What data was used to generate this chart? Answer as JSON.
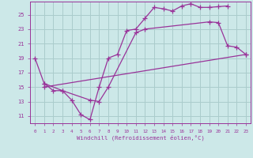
{
  "background_color": "#cce8e8",
  "grid_color": "#aacccc",
  "line_color": "#993399",
  "marker": "+",
  "markersize": 4,
  "linewidth": 0.9,
  "xlabel": "Windchill (Refroidissement éolien,°C)",
  "xlim": [
    -0.5,
    23.5
  ],
  "ylim": [
    10.0,
    26.8
  ],
  "yticks": [
    11,
    13,
    15,
    17,
    19,
    21,
    23,
    25
  ],
  "xticks": [
    0,
    1,
    2,
    3,
    4,
    5,
    6,
    7,
    8,
    9,
    10,
    11,
    12,
    13,
    14,
    15,
    16,
    17,
    18,
    19,
    20,
    21,
    22,
    23
  ],
  "curves": [
    {
      "x": [
        0,
        1,
        2,
        3,
        4,
        5,
        6,
        7,
        8,
        9,
        10,
        11,
        12,
        13,
        14,
        15,
        16,
        17,
        18,
        19,
        20,
        21
      ],
      "y": [
        19.0,
        15.5,
        14.5,
        14.5,
        13.2,
        11.2,
        10.5,
        15.0,
        19.0,
        19.5,
        22.8,
        23.0,
        24.5,
        26.0,
        25.8,
        25.5,
        26.2,
        26.5,
        26.0,
        26.0,
        26.1,
        26.2
      ]
    },
    {
      "x": [
        1,
        3,
        6,
        7,
        8,
        11,
        12,
        19,
        20,
        21,
        22,
        23
      ],
      "y": [
        15.5,
        14.5,
        13.2,
        13.0,
        15.0,
        22.5,
        23.0,
        24.0,
        23.9,
        20.7,
        20.5,
        19.5
      ]
    },
    {
      "x": [
        1,
        23
      ],
      "y": [
        15.0,
        19.5
      ]
    }
  ]
}
